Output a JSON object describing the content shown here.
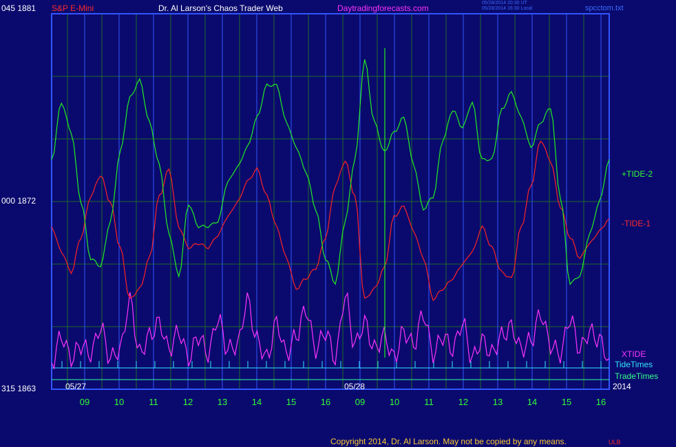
{
  "header": {
    "symbol": "S&P E-Mini",
    "author": "Dr. Al Larson's Chaos Trader Web",
    "site": "Daytradingforecasts.com",
    "timestamp_utc": "05/28/2014 20:30 UT",
    "timestamp_local": "05/28/2014 16:30 Local",
    "filename": "spcctom.txt"
  },
  "y_axis": {
    "top_label": "045  1881",
    "mid_label": "000  1872",
    "bottom_label": "315  1863"
  },
  "legend": {
    "tide2": "+TIDE-2",
    "tide1": "-TIDE-1",
    "xtide": "XTIDE",
    "tidetimes": "TideTimes",
    "tradetimes": "TradeTimes"
  },
  "dates": {
    "d1": "05/27",
    "d2": "05/28",
    "year": "2014"
  },
  "footer": {
    "copyright": "Copyright 2014, Dr. Al Larson. May not be copied by any means.",
    "mark": "ULB"
  },
  "colors": {
    "background": "#0a0a6e",
    "frame": "#3355ff",
    "grid": "#1f6b2a",
    "day_line": "#3355ff",
    "tide2": "#22ee22",
    "tide1": "#ff2222",
    "xtide": "#ff33ff",
    "tidetimes": "#33e6ff",
    "tradetimes": "#33ff99"
  },
  "chart_data": {
    "type": "line",
    "title": "S&P E-Mini",
    "ylim": [
      1863,
      1881
    ],
    "x_tick_labels": [
      "09",
      "10",
      "11",
      "12",
      "13",
      "14",
      "15",
      "16",
      "09",
      "10",
      "11",
      "12",
      "13",
      "14",
      "15",
      "16"
    ],
    "series": [
      {
        "name": "+TIDE-2",
        "values": [
          0.55,
          0.78,
          0.66,
          0.38,
          0.15,
          0.12,
          0.3,
          0.58,
          0.8,
          0.87,
          0.7,
          0.53,
          0.25,
          0.08,
          0.37,
          0.28,
          0.28,
          0.3,
          0.46,
          0.52,
          0.6,
          0.72,
          0.85,
          0.85,
          0.7,
          0.6,
          0.5,
          0.35,
          0.15,
          0.05,
          0.3,
          0.55,
          0.95,
          0.7,
          0.58,
          0.66,
          0.72,
          0.53,
          0.35,
          0.4,
          0.63,
          0.75,
          0.68,
          0.78,
          0.55,
          0.55,
          0.75,
          0.82,
          0.72,
          0.6,
          0.7,
          0.76,
          0.4,
          0.05,
          0.08,
          0.25,
          0.38,
          0.55
        ]
      },
      {
        "name": "-TIDE-1",
        "values": [
          0.4,
          0.28,
          0.18,
          0.35,
          0.55,
          0.65,
          0.52,
          0.3,
          0.05,
          0.1,
          0.25,
          0.55,
          0.68,
          0.4,
          0.3,
          0.32,
          0.3,
          0.36,
          0.45,
          0.52,
          0.62,
          0.68,
          0.55,
          0.4,
          0.25,
          0.1,
          0.15,
          0.2,
          0.35,
          0.6,
          0.72,
          0.55,
          0.05,
          0.1,
          0.2,
          0.45,
          0.5,
          0.38,
          0.25,
          0.05,
          0.1,
          0.15,
          0.22,
          0.28,
          0.4,
          0.3,
          0.18,
          0.15,
          0.4,
          0.6,
          0.82,
          0.72,
          0.5,
          0.35,
          0.25,
          0.32,
          0.38,
          0.44
        ]
      },
      {
        "name": "XTIDE",
        "values": [
          0.25,
          0.55,
          0.3,
          0.45,
          0.35,
          0.65,
          0.3,
          0.4,
          0.95,
          0.35,
          0.55,
          0.7,
          0.4,
          0.6,
          0.3,
          0.55,
          0.35,
          0.75,
          0.4,
          0.45,
          0.95,
          0.5,
          0.3,
          0.7,
          0.35,
          0.55,
          0.85,
          0.4,
          0.6,
          0.3,
          1.0,
          0.45,
          0.7,
          0.4,
          0.55,
          0.3,
          0.6,
          0.45,
          0.8,
          0.35,
          0.55,
          0.4,
          0.7,
          0.3,
          0.5,
          0.35,
          0.55,
          0.65,
          0.4,
          0.5,
          0.8,
          0.45,
          0.35,
          0.75,
          0.4,
          0.6,
          0.5,
          0.3
        ]
      }
    ]
  }
}
